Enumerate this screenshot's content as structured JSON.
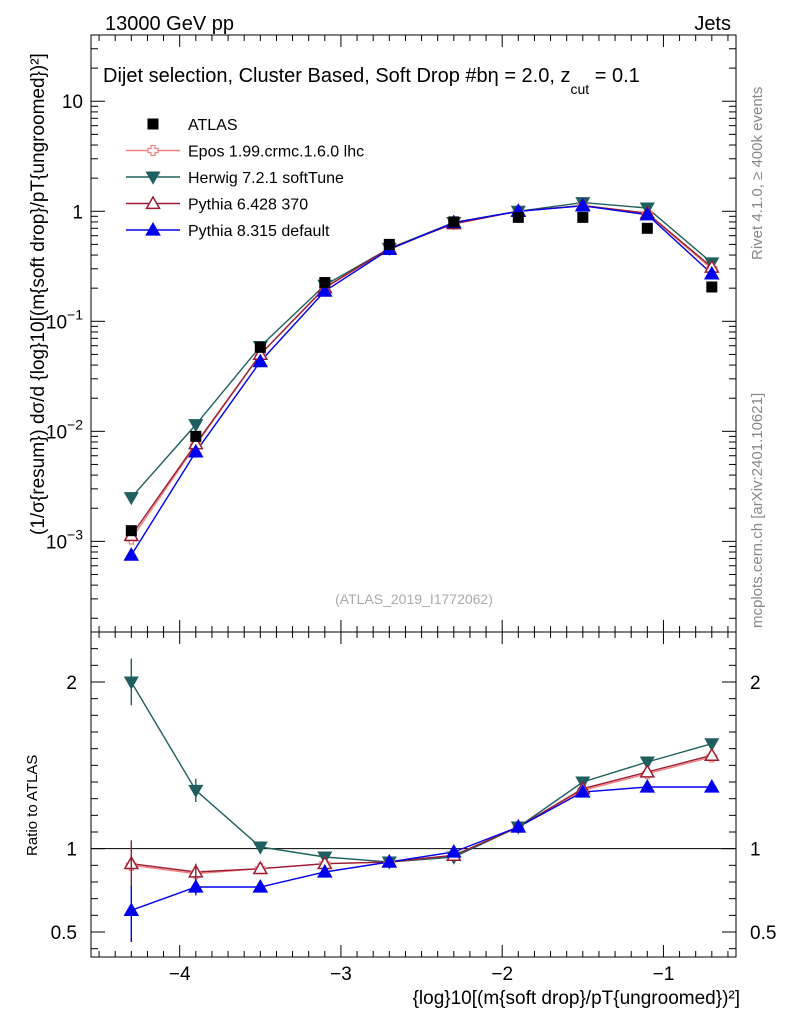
{
  "header": {
    "left": "13000 GeV pp",
    "right": "Jets"
  },
  "side_labels": {
    "rivet": "Rivet 4.1.0, ≥ 400k events",
    "mcplots": "mcplots.cern.ch [arXiv:2401.10621]"
  },
  "chart_data": {
    "type": "line",
    "title": "Dijet selection, Cluster Based, Soft Drop #b",
    "title_params": "η = 2.0, z",
    "title_sub": "cut",
    "title_tail": " = 0.1",
    "analysis_id": "(ATLAS_2019_I1772062)",
    "ylabel_main": "(1/σ{resum}) dσ/d {log}10[(m{soft drop}/pT{ungroomed})²]",
    "ylabel_ratio": "Ratio to ATLAS",
    "xlabel": "{log}10[(m{soft drop}/pT{ungroomed})²]",
    "xlim": [
      -4.55,
      -0.55
    ],
    "ylim_main": [
      0.00015,
      40
    ],
    "ylim_ratio": [
      0.35,
      2.3
    ],
    "y_scale_main": "log",
    "x_ticks": [
      -4,
      -3,
      -2,
      -1
    ],
    "x_tick_labels": [
      "−4",
      "−3",
      "−2",
      "−1"
    ],
    "y_ticks_main": [
      0.001,
      0.01,
      0.1,
      1,
      10
    ],
    "y_ticks_ratio": [
      0.5,
      1,
      2
    ],
    "y_tick_labels_ratio": [
      "0.5",
      "1",
      "2"
    ],
    "x": [
      -4.3,
      -3.9,
      -3.5,
      -3.1,
      -2.7,
      -2.3,
      -1.9,
      -1.5,
      -1.1,
      -0.7
    ],
    "data": {
      "name": "ATLAS",
      "values": [
        0.00125,
        0.009,
        0.058,
        0.225,
        0.5,
        0.8,
        0.88,
        0.88,
        0.7,
        0.205
      ]
    },
    "series": [
      {
        "name": "Epos 1.99.crmc.1.6.0 lhc",
        "color": "#f08080",
        "marker": "open-cross",
        "values": [
          0.00105,
          0.0075,
          0.05,
          0.2,
          0.46,
          0.77,
          1.0,
          1.12,
          0.95,
          0.3
        ],
        "ratio": [
          0.9,
          0.85,
          0.88,
          0.91,
          0.92,
          0.96,
          1.13,
          1.35,
          1.45,
          1.55
        ]
      },
      {
        "name": "Herwig 7.2.1 softTune",
        "color": "#1f5f5f",
        "marker": "filled-triangle-down",
        "values": [
          0.0025,
          0.0115,
          0.059,
          0.213,
          0.46,
          0.79,
          1.0,
          1.2,
          1.07,
          0.34
        ],
        "ratio": [
          2.0,
          1.35,
          1.01,
          0.95,
          0.92,
          0.95,
          1.13,
          1.4,
          1.52,
          1.63
        ]
      },
      {
        "name": "Pythia 6.428 370",
        "color": "#9b1c31",
        "marker": "open-triangle-up",
        "values": [
          0.00113,
          0.0077,
          0.05,
          0.202,
          0.46,
          0.77,
          1.0,
          1.13,
          0.96,
          0.31
        ],
        "ratio": [
          0.91,
          0.86,
          0.88,
          0.91,
          0.92,
          0.96,
          1.13,
          1.36,
          1.46,
          1.56
        ]
      },
      {
        "name": "Pythia 8.315 default",
        "color": "#0000ee",
        "marker": "filled-triangle-up",
        "values": [
          0.00075,
          0.0065,
          0.043,
          0.188,
          0.45,
          0.79,
          1.0,
          1.12,
          0.93,
          0.27
        ],
        "ratio": [
          0.63,
          0.77,
          0.77,
          0.86,
          0.92,
          0.98,
          1.13,
          1.34,
          1.37,
          1.37
        ]
      }
    ]
  }
}
